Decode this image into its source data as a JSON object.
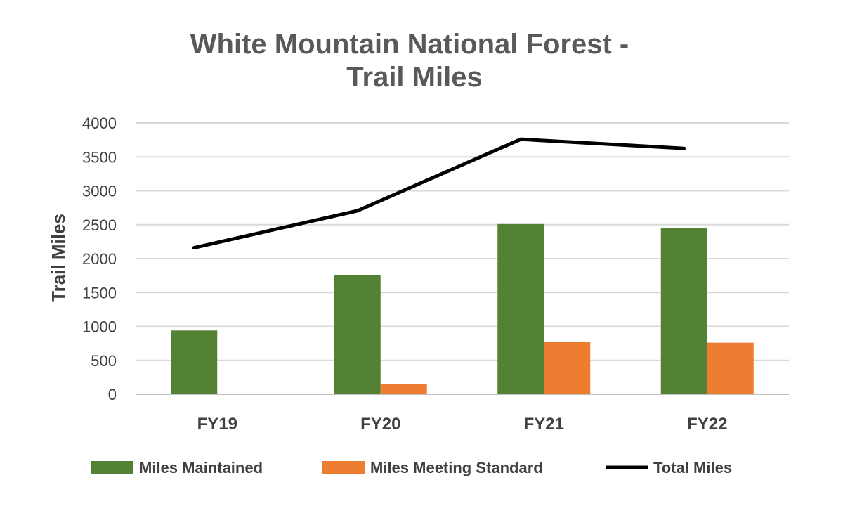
{
  "chart_data": {
    "type": "bar",
    "title_lines": [
      "White Mountain National Forest -",
      "Trail Miles"
    ],
    "xlabel": "",
    "ylabel": "Trail Miles",
    "categories": [
      "FY19",
      "FY20",
      "FY21",
      "FY22"
    ],
    "ylim": [
      0,
      4000
    ],
    "yticks": [
      0,
      500,
      1000,
      1500,
      2000,
      2500,
      3000,
      3500,
      4000
    ],
    "grid": true,
    "legend_position": "bottom",
    "series": [
      {
        "name": "Miles Maintained",
        "kind": "bar",
        "color": "#548235",
        "values": [
          940,
          1760,
          2510,
          2450
        ]
      },
      {
        "name": "Miles Meeting Standard",
        "kind": "bar",
        "color": "#ED7D31",
        "values": [
          0,
          150,
          775,
          760
        ]
      },
      {
        "name": "Total Miles",
        "kind": "line",
        "color": "#000000",
        "values": [
          2160,
          2705,
          3760,
          3625
        ]
      }
    ]
  }
}
